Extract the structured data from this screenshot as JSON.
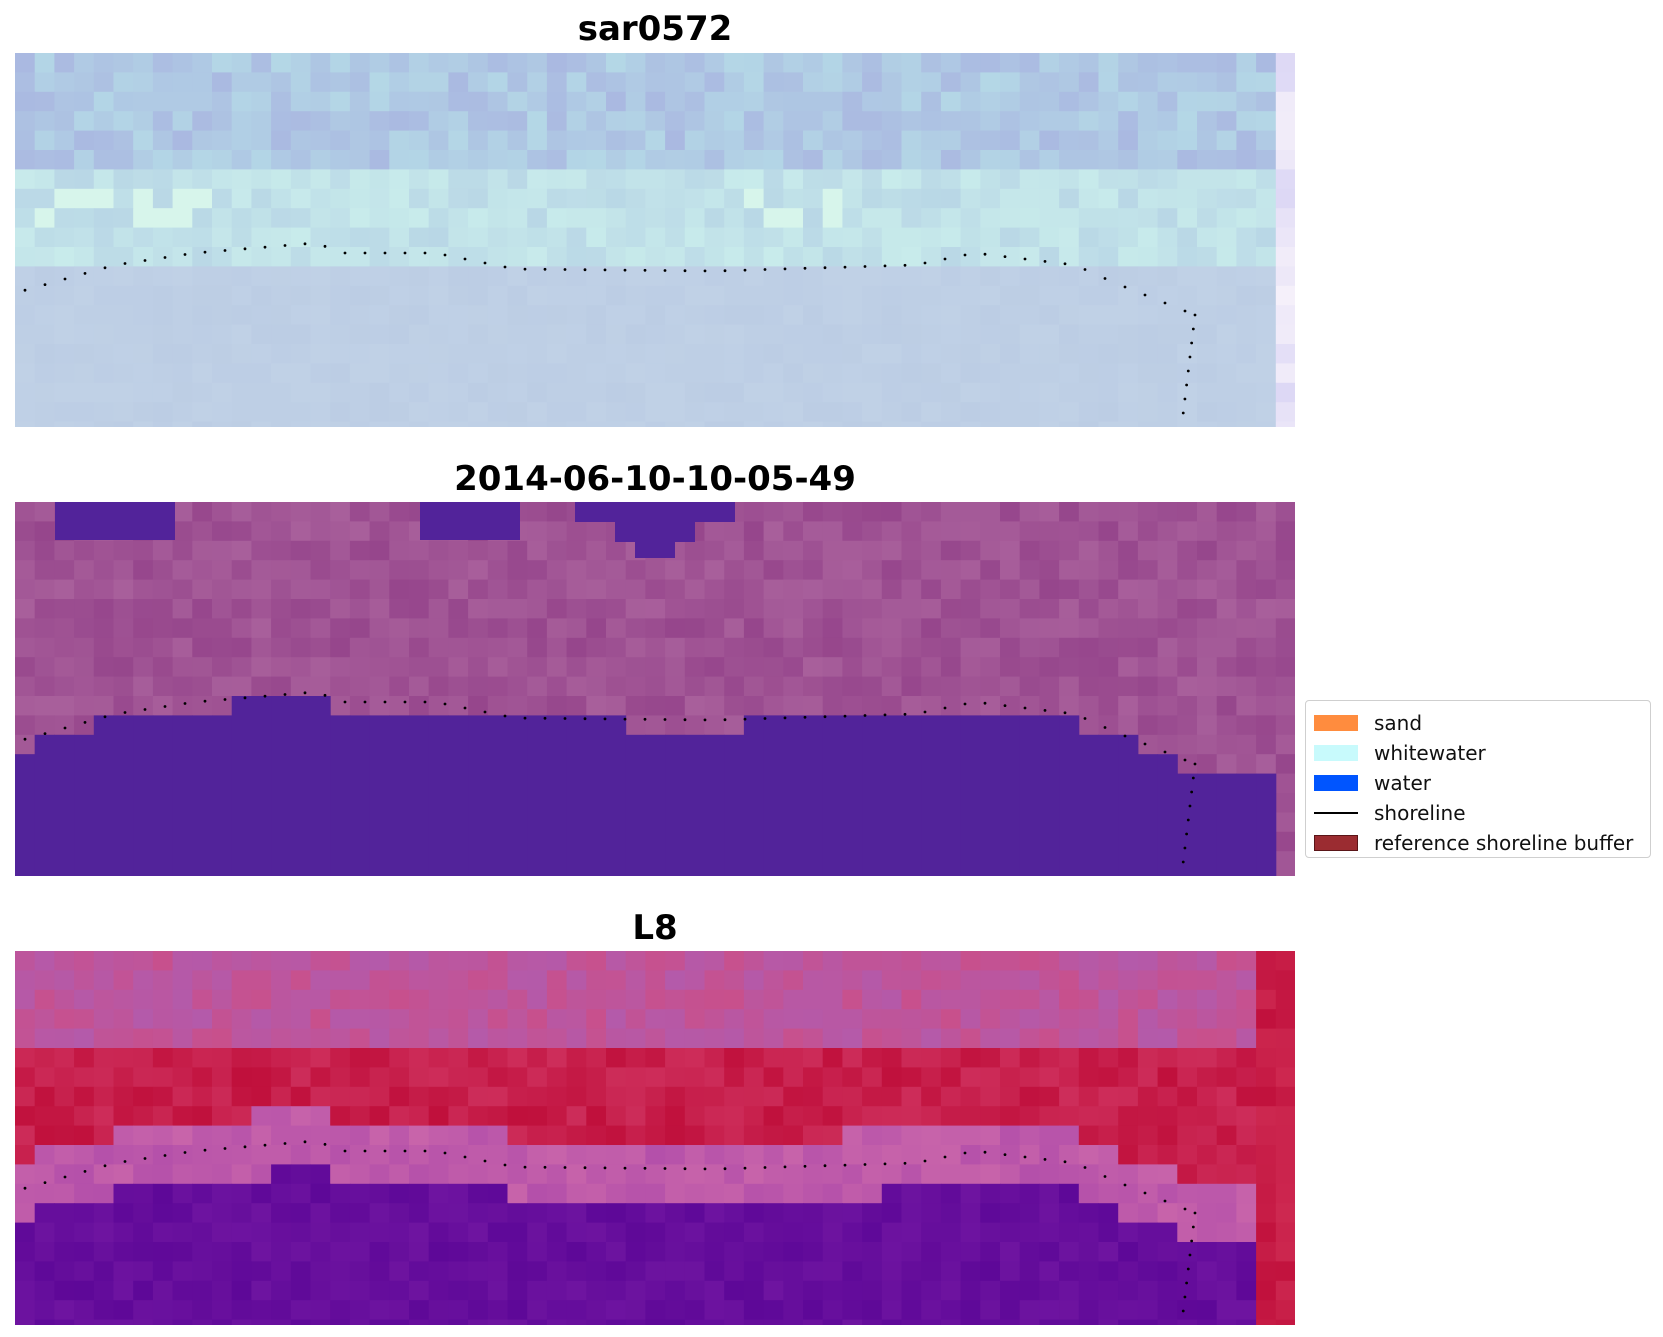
{
  "panels": [
    {
      "title": "sar0572",
      "image": "rgb-composite"
    },
    {
      "title": "2014-06-10-10-05-49",
      "image": "classified-overlay"
    },
    {
      "title": "L8",
      "image": "mndwi-index"
    }
  ],
  "legend": {
    "items": [
      {
        "label": "sand",
        "color": "#ff8c3e",
        "kind": "patch"
      },
      {
        "label": "whitewater",
        "color": "#c8fafc",
        "kind": "patch"
      },
      {
        "label": "water",
        "color": "#0055ff",
        "kind": "patch"
      },
      {
        "label": "shoreline",
        "color": "#000000",
        "kind": "line"
      },
      {
        "label": "reference shoreline buffer",
        "color": "#9b2c31",
        "kind": "patch"
      }
    ]
  },
  "colors": {
    "shoreline_dots": "#000000",
    "class_water_overlay": "#52239a",
    "index_high": "#c0103c",
    "index_low": "#5e0898"
  }
}
